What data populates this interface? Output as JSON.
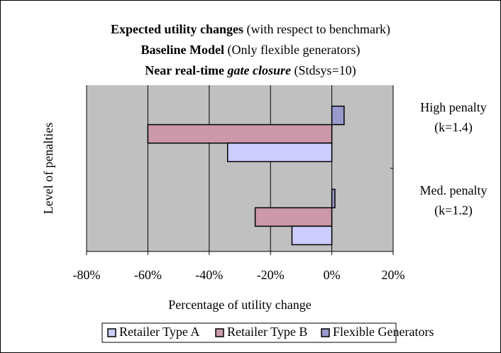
{
  "chart_data": {
    "type": "hbar",
    "title": [
      [
        {
          "text": "Expected utility changes",
          "style": "bold"
        },
        {
          "text": " (with respect to benchmark)",
          "style": "normal"
        }
      ],
      [
        {
          "text": "Baseline Model",
          "style": "bold"
        },
        {
          "text": " (Only flexible generators)",
          "style": "normal"
        }
      ],
      [
        {
          "text": "Near real-time ",
          "style": "bold"
        },
        {
          "text": "gate closure",
          "style": "bolditalic"
        },
        {
          "text": " (Stdsys=10)",
          "style": "normal"
        }
      ]
    ],
    "x_label": "Percentage of utility change",
    "y_label": "Level of penalties",
    "categories": [
      "Med. penalty (k=1.2)",
      "High penalty (k=1.4)"
    ],
    "series": [
      {
        "name": "Retailer Type A",
        "color": "#ccccff",
        "values": [
          -13,
          -34
        ]
      },
      {
        "name": "Retailer Type B",
        "color": "#cc99aa",
        "values": [
          -25,
          -60
        ]
      },
      {
        "name": "Flexible Generators",
        "color": "#9999cc",
        "values": [
          1,
          4
        ]
      }
    ],
    "xlim": [
      -80,
      20
    ],
    "xticks": [
      {
        "value": -80,
        "label": "-80%"
      },
      {
        "value": -60,
        "label": "-60%"
      },
      {
        "value": -40,
        "label": "-40%"
      },
      {
        "value": -20,
        "label": "-20%"
      },
      {
        "value": 0,
        "label": "0%"
      },
      {
        "value": 20,
        "label": "20%"
      }
    ],
    "grid": true,
    "legend": "bottom"
  }
}
